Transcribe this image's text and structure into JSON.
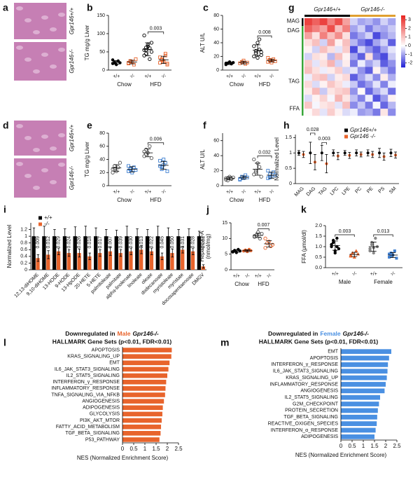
{
  "histology": [
    {
      "panel": "a",
      "labels": [
        "Gpr146+/+",
        "Gpr146-/-"
      ]
    },
    {
      "panel": "d",
      "labels": [
        "Gpr146+/+",
        "Gpr146-/-"
      ]
    }
  ],
  "chart_data": [
    {
      "type": "dot",
      "panel": "b",
      "ylabel": "TG mg/g Liver",
      "ylim": [
        0,
        150
      ],
      "yticks": [
        0,
        50,
        100,
        150
      ],
      "groups": [
        "Chow",
        "HFD"
      ],
      "series": [
        {
          "name": "+/+",
          "color": "#000000",
          "marker": "circle",
          "values": [
            18,
            22,
            15,
            25,
            20,
            28,
            20
          ],
          "mean": 21,
          "sd": 5
        },
        {
          "name": "-/-",
          "color": "#e8642c",
          "marker": "open-square",
          "values": [
            18,
            25,
            22,
            15,
            30,
            20,
            24
          ],
          "mean": 22,
          "sd": 5
        },
        {
          "name": "+/+",
          "color": "#000000",
          "marker": "open-circle",
          "values": [
            40,
            55,
            70,
            60,
            50,
            95,
            45,
            65,
            30,
            75,
            55,
            62
          ],
          "mean": 57,
          "sd": 18
        },
        {
          "name": "-/-",
          "color": "#e8642c",
          "marker": "open-square",
          "values": [
            20,
            30,
            25,
            40,
            15,
            35,
            28,
            22,
            45,
            18
          ],
          "mean": 28,
          "sd": 10,
          "pvalue": "0.003"
        }
      ]
    },
    {
      "type": "dot",
      "panel": "c",
      "ylabel": "ALT U/L",
      "ylim": [
        0,
        80
      ],
      "yticks": [
        0,
        20,
        40,
        60,
        80
      ],
      "groups": [
        "Chow",
        "HFD"
      ],
      "series": [
        {
          "name": "+/+",
          "color": "#000000",
          "marker": "circle",
          "values": [
            8,
            10,
            12,
            9,
            11,
            10
          ],
          "mean": 10,
          "sd": 2
        },
        {
          "name": "-/-",
          "color": "#e8642c",
          "marker": "open-square",
          "values": [
            10,
            12,
            14,
            9,
            11
          ],
          "mean": 11,
          "sd": 2
        },
        {
          "name": "+/+",
          "color": "#000000",
          "marker": "open-circle",
          "values": [
            20,
            25,
            40,
            30,
            22,
            35,
            28,
            18,
            45,
            26
          ],
          "mean": 29,
          "sd": 8
        },
        {
          "name": "-/-",
          "color": "#e8642c",
          "marker": "open-square",
          "values": [
            12,
            15,
            14,
            16,
            13,
            18,
            14,
            11
          ],
          "mean": 14,
          "sd": 2,
          "pvalue": "0.008"
        }
      ]
    },
    {
      "type": "dot",
      "panel": "e",
      "ylabel": "TG mg/g Liver",
      "ylim": [
        0,
        80
      ],
      "yticks": [
        0,
        20,
        40,
        60,
        80
      ],
      "groups": [
        "Chow",
        "HFD"
      ],
      "series": [
        {
          "name": "+/+",
          "color": "#555555",
          "marker": "open-circle",
          "values": [
            25,
            30,
            22,
            28,
            35,
            20,
            26
          ],
          "mean": 27,
          "sd": 5
        },
        {
          "name": "-/-",
          "color": "#3f7fd0",
          "marker": "open-square",
          "values": [
            22,
            25,
            20,
            28,
            24,
            30,
            26
          ],
          "mean": 25,
          "sd": 4
        },
        {
          "name": "+/+",
          "color": "#555555",
          "marker": "open-circle",
          "values": [
            45,
            55,
            50,
            60,
            42,
            52,
            48
          ],
          "mean": 50,
          "sd": 6
        },
        {
          "name": "-/-",
          "color": "#3f7fd0",
          "marker": "open-square",
          "values": [
            30,
            25,
            40,
            35,
            22,
            38,
            28,
            32
          ],
          "mean": 31,
          "sd": 6,
          "pvalue": "0.006"
        }
      ]
    },
    {
      "type": "dot",
      "panel": "f",
      "ylabel": "ALT U/L",
      "ylim": [
        0,
        70
      ],
      "yticks": [
        0,
        20,
        40,
        60
      ],
      "groups": [
        "Chow",
        "HFD"
      ],
      "series": [
        {
          "name": "+/+",
          "color": "#555555",
          "marker": "open-circle",
          "values": [
            8,
            10,
            12,
            9,
            11,
            10,
            7
          ],
          "mean": 10,
          "sd": 2
        },
        {
          "name": "-/-",
          "color": "#3f7fd0",
          "marker": "open-square",
          "values": [
            9,
            12,
            10,
            14,
            11,
            8
          ],
          "mean": 11,
          "sd": 2
        },
        {
          "name": "+/+",
          "color": "#555555",
          "marker": "open-circle",
          "values": [
            15,
            20,
            30,
            25,
            12,
            35,
            18
          ],
          "mean": 22,
          "sd": 8
        },
        {
          "name": "-/-",
          "color": "#3f7fd0",
          "marker": "open-square",
          "values": [
            10,
            15,
            12,
            18,
            14,
            20,
            11
          ],
          "mean": 14,
          "sd": 4,
          "pvalue": "0.032"
        }
      ]
    },
    {
      "type": "heatmap",
      "panel": "g",
      "column_groups": [
        {
          "name": "Gpr146+/+",
          "color": "#000000"
        },
        {
          "name": "Gpr146-/-",
          "color": "#e0a030"
        }
      ],
      "row_groups": [
        "MAG",
        "DAG",
        "TAG",
        "FFA"
      ],
      "zlim": [
        -2.5,
        3.5
      ],
      "zticks": [
        3,
        2,
        1,
        0,
        -1,
        -2
      ],
      "colors": [
        "#1f1fd6",
        "#ffffff",
        "#e8231f"
      ],
      "values": [
        [
          3,
          2.5,
          3,
          2,
          2.8,
          1.5,
          -0.5,
          -1,
          -0.8,
          -1.2,
          -0.5,
          -1
        ],
        [
          2.5,
          2,
          1.5,
          2.8,
          1,
          2,
          -1,
          -0.5,
          -1.5,
          -0.8,
          -1,
          -0.6
        ],
        [
          1.5,
          0.5,
          2,
          1,
          1.8,
          0.5,
          -1.5,
          -1,
          -0.5,
          -2,
          -1.2,
          -0.8
        ],
        [
          0.5,
          1,
          -0.5,
          1.5,
          0.2,
          1,
          -0.8,
          -1.5,
          -2,
          -1,
          -0.5,
          -1.8
        ],
        [
          0.2,
          -0.5,
          1,
          0.5,
          -0.3,
          0.8,
          -2,
          -0.5,
          -1.2,
          -1.8,
          -1,
          -0.3
        ],
        [
          -0.5,
          0.5,
          0.3,
          -0.8,
          1,
          0.2,
          -1,
          -1.8,
          0.5,
          -1.5,
          -2,
          -0.6
        ],
        [
          0.8,
          -0.3,
          0.5,
          1.2,
          -0.5,
          0.3,
          -1.5,
          -0.2,
          -1,
          -0.5,
          -1.8,
          -1.2
        ],
        [
          1,
          0.5,
          -0.2,
          0.3,
          0.8,
          -0.5,
          -0.3,
          -1.2,
          -1.8,
          0.2,
          -0.8,
          -1.5
        ],
        [
          -0.2,
          0.8,
          1,
          -0.5,
          0.3,
          0.6,
          -1.8,
          -1,
          -0.4,
          -1.3,
          0.3,
          -0.9
        ],
        [
          0.6,
          -0.4,
          0.2,
          0.9,
          0.5,
          -0.2,
          -0.6,
          -1.6,
          -1.1,
          -0.3,
          -1.4,
          -0.2
        ],
        [
          0.3,
          1.1,
          -0.6,
          0.4,
          0.7,
          0.9,
          -1.2,
          0.1,
          -1.7,
          -0.9,
          -0.4,
          -1.6
        ],
        [
          -0.4,
          0.2,
          0.7,
          -0.1,
          1.2,
          0.4,
          -0.7,
          -1.4,
          -0.2,
          -1.9,
          -1.1,
          0.2
        ],
        [
          0.9,
          -0.1,
          0.4,
          0.6,
          -0.3,
          1,
          -1.3,
          -0.6,
          -1.5,
          -0.1,
          -1.7,
          -0.8
        ],
        [
          0.1,
          0.6,
          -0.3,
          0.8,
          0.2,
          -0.4,
          -0.2,
          -1.1,
          -0.9,
          -1.5,
          0.4,
          -1.3
        ]
      ]
    },
    {
      "type": "errorbar",
      "panel": "h",
      "ylabel": "Normalized Level",
      "ylim": [
        0,
        1.6
      ],
      "yticks": [
        0,
        0.5,
        1,
        1.5
      ],
      "categories": [
        "MAG",
        "DAG",
        "TAG",
        "LPC",
        "LPE",
        "PC",
        "PE",
        "PS",
        "SM"
      ],
      "pvalues": [
        null,
        "0.028",
        "0.003",
        null,
        null,
        null,
        null,
        null,
        null
      ],
      "series": [
        {
          "name": "Gpr146+/+",
          "color": "#000000",
          "values": [
            1,
            1,
            1,
            1,
            1,
            1,
            1,
            1,
            1
          ],
          "errors": [
            0.08,
            0.35,
            0.25,
            0.1,
            0.08,
            0.1,
            0.1,
            0.15,
            0.12
          ]
        },
        {
          "name": "Gpr146 -/-",
          "color": "#e8642c",
          "values": [
            0.95,
            0.7,
            0.65,
            0.9,
            0.92,
            0.95,
            0.95,
            0.88,
            0.93
          ],
          "errors": [
            0.1,
            0.25,
            0.3,
            0.12,
            0.1,
            0.08,
            0.1,
            0.12,
            0.1
          ]
        }
      ]
    },
    {
      "type": "bar",
      "panel": "i",
      "ylabel": "Normalized Level",
      "ylim": [
        0,
        1.4
      ],
      "yticks": [
        0,
        0.2,
        0.4,
        0.6,
        0.8,
        1,
        1.2
      ],
      "categories": [
        "12,13-diHOME",
        "9,10-diHOME",
        "13-HODE",
        "9-HODE",
        "13-HpODE",
        "20-HETE",
        "5-HETE",
        "palmitoleate",
        "palmitate",
        "alpha-linolenate",
        "linoleate",
        "oleate",
        "dodecanoate",
        "myristoleate",
        "myristate",
        "docosapentaenoate",
        "DMGV"
      ],
      "pvalues": [
        "0.009",
        "0.012",
        "0.029",
        "0.024",
        "0.026",
        "0.018",
        "0.017",
        "0.007",
        "0.039",
        "0.030",
        "0.013",
        "0.022",
        "0.045",
        "0.050",
        "0.031",
        "0.028",
        "0.004"
      ],
      "series": [
        {
          "name": "+/+",
          "color": "#000000",
          "values": [
            1,
            1,
            1,
            1,
            1,
            1,
            1,
            1,
            1,
            1,
            1,
            1,
            1,
            1,
            1,
            1,
            1
          ],
          "errors": [
            0.25,
            0.3,
            0.2,
            0.22,
            0.28,
            0.3,
            0.25,
            0.2,
            0.18,
            0.3,
            0.22,
            0.2,
            0.3,
            0.25,
            0.2,
            0.22,
            0.15
          ]
        },
        {
          "name": "-/-",
          "color": "#e8642c",
          "values": [
            0.35,
            0.45,
            0.55,
            0.5,
            0.5,
            0.4,
            0.5,
            0.55,
            0.5,
            0.55,
            0.6,
            0.55,
            0.4,
            0.5,
            0.6,
            0.55,
            0.1
          ],
          "errors": [
            0.1,
            0.12,
            0.1,
            0.1,
            0.12,
            0.1,
            0.1,
            0.12,
            0.1,
            0.1,
            0.12,
            0.1,
            0.1,
            0.12,
            0.1,
            0.1,
            0.05
          ]
        }
      ]
    },
    {
      "type": "dot",
      "panel": "j",
      "ylabel": [
        "Hepatic FFA",
        "(nmol/mg)"
      ],
      "ylim": [
        0,
        15
      ],
      "yticks": [
        0,
        5,
        10,
        15
      ],
      "groups": [
        "Chow",
        "HFD"
      ],
      "series": [
        {
          "name": "+/+",
          "color": "#000000",
          "marker": "circle",
          "values": [
            5.8,
            6.2,
            5.5,
            6.5,
            6,
            5.7
          ],
          "mean": 6,
          "sd": 0.4
        },
        {
          "name": "-/-",
          "color": "#e8642c",
          "marker": "circle",
          "values": [
            6,
            6.3,
            5.8,
            6.5,
            6.1
          ],
          "mean": 6.1,
          "sd": 0.3
        },
        {
          "name": "+/+",
          "color": "#555555",
          "marker": "open-circle",
          "values": [
            10.5,
            11,
            12,
            10,
            11.5,
            10.8
          ],
          "mean": 11,
          "sd": 0.7
        },
        {
          "name": "-/-",
          "color": "#e8642c",
          "marker": "open-circle",
          "values": [
            7,
            8.5,
            9,
            7.5,
            8,
            10
          ],
          "mean": 8.3,
          "sd": 1,
          "pvalue": "0.007"
        }
      ]
    },
    {
      "type": "dot",
      "panel": "k",
      "ylabel": "FFA (μmol/dl)",
      "ylim": [
        0,
        2
      ],
      "yticks": [
        {
          "value": 0,
          "label": "0.0"
        },
        {
          "value": 0.5,
          "label": "0.5"
        },
        {
          "value": 1,
          "label": "1.0"
        },
        {
          "value": 1.5,
          "label": "1.5"
        },
        {
          "value": 2,
          "label": "2.0"
        }
      ],
      "groups": [
        "Male",
        "Female"
      ],
      "series": [
        {
          "name": "+/+",
          "color": "#000000",
          "marker": "circle",
          "values": [
            1.0,
            1.2,
            0.8,
            1.4,
            0.9,
            1.1,
            1.3,
            0.7,
            1.0
          ],
          "mean": 1.05,
          "sd": 0.22
        },
        {
          "name": "-/-",
          "color": "#e8642c",
          "marker": "triangle",
          "values": [
            0.6,
            0.7,
            0.5,
            0.8,
            0.65,
            0.55
          ],
          "mean": 0.63,
          "sd": 0.1,
          "pvalue": "0.003"
        },
        {
          "name": "+/+",
          "color": "#888888",
          "marker": "circle",
          "values": [
            0.9,
            1.2,
            0.7,
            1.4,
            1.0,
            0.8,
            1.1,
            0.95
          ],
          "mean": 1.0,
          "sd": 0.22
        },
        {
          "name": "-/-",
          "color": "#3f7fd0",
          "marker": "square",
          "values": [
            0.5,
            0.7,
            0.6,
            0.8,
            0.45,
            0.65,
            0.55
          ],
          "mean": 0.6,
          "sd": 0.12,
          "pvalue": "0.013"
        }
      ]
    },
    {
      "type": "hbar",
      "panel": "l",
      "title": [
        "Downregulated in",
        "Male",
        "Gpr146-/-"
      ],
      "subtitle": "HALLMARK Gene Sets (p<0.01, FDR<0.01)",
      "color": "#e8642c",
      "xlim": [
        0,
        2.5
      ],
      "xticks": [
        0,
        0.5,
        1,
        1.5,
        2,
        2.5
      ],
      "xlabel": "NES (Normalized  Enrichment Score)",
      "categories": [
        "APOPTOSIS",
        "KRAS_SIGNALING_UP",
        "EMT",
        "IL6_JAK_STAT3_SIGNALING",
        "IL2_STAT5_SIGNALING",
        "INTERFERON_γ_RESPONSE",
        "INFLAMMATORY_RESPONSE",
        "TNFA_SIGNALING_VIA_NFKB",
        "ANGIOGENESIS",
        "ADIPOGENESIS",
        "GLYCOLYSIS",
        "PI3K_AKT_MTOR",
        "FATTY_ACID_METABOLISM",
        "TGF_BETA_SIGNALING",
        "P53_PATHWAY"
      ],
      "values": [
        2.2,
        2.18,
        2.1,
        2.05,
        2.0,
        1.95,
        1.92,
        1.9,
        1.85,
        1.8,
        1.78,
        1.75,
        1.72,
        1.7,
        1.65
      ]
    },
    {
      "type": "hbar",
      "panel": "m",
      "title": [
        "Downregulated in",
        "Female",
        "Gpr146-/-"
      ],
      "subtitle": "HALLMARK Gene Sets (p<0.01, FDR<0.01)",
      "color": "#4a90e2",
      "xlim": [
        0,
        2.5
      ],
      "xticks": [
        0,
        0.5,
        1,
        1.5,
        2,
        2.5
      ],
      "xlabel": "NES (Normalized  Enrichment Score)",
      "categories": [
        "EMT",
        "APOPTOSIS",
        "INTERFERON_γ_RESPONSE",
        "IL6_JAK_STAT3_SIGNALING",
        "KRAS_SIGNALING_UP",
        "INFLAMMATORY_RESPONSE",
        "ANGIOGENESIS",
        "IL2_STAT5_SIGNALING",
        "G2M_CHECKPOINT",
        "PROTEIN_SECRETION",
        "TGF_BETA_SIGNALING",
        "REACTIVE_OXIGEN_SPECIES",
        "INTERFERON_α_RESPONSE",
        "ADIPOGENESIS"
      ],
      "values": [
        2.25,
        2.15,
        2.1,
        2.08,
        2.05,
        2.0,
        1.95,
        1.75,
        1.7,
        1.65,
        1.62,
        1.6,
        1.55,
        1.5
      ]
    }
  ]
}
